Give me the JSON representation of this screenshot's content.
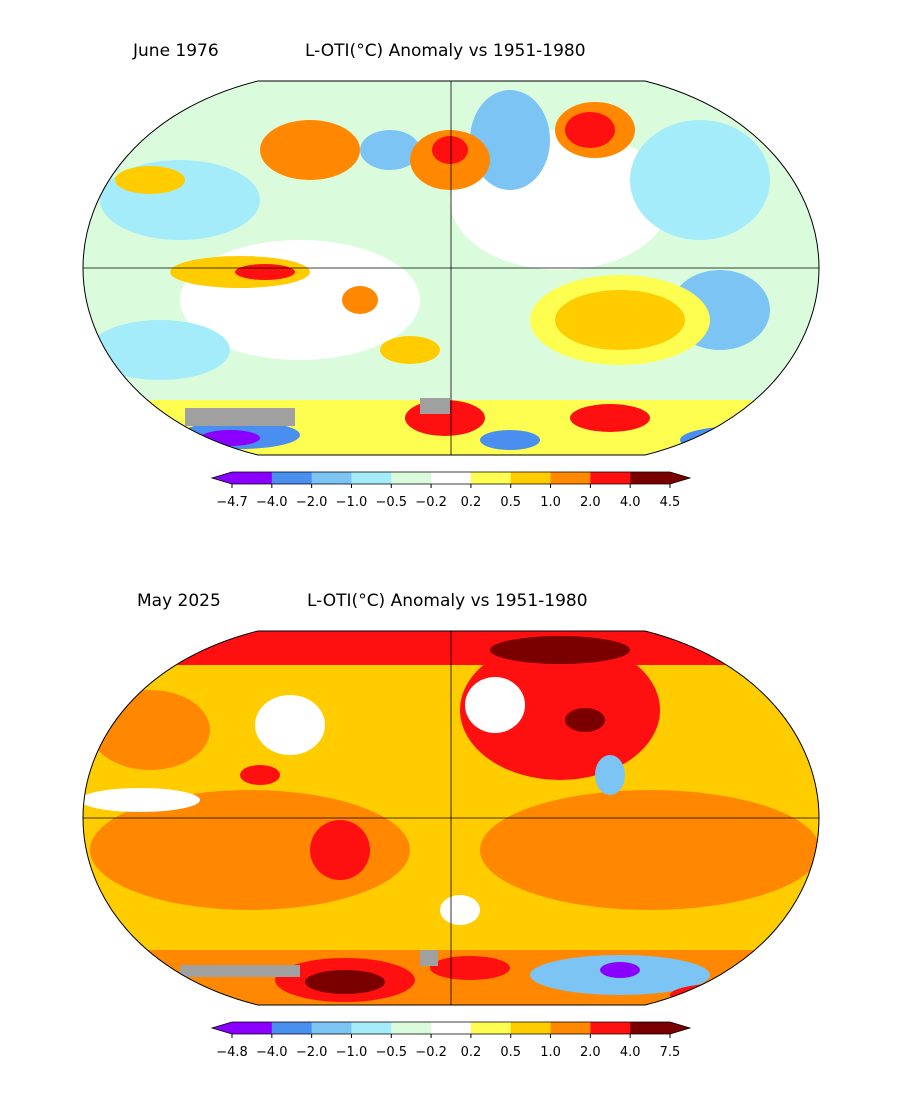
{
  "colorbar_colors": [
    "#8a00ff",
    "#4a8ff0",
    "#7cc4f4",
    "#a4ecfa",
    "#dafcdc",
    "#ffffff",
    "#fefe50",
    "#ffcc00",
    "#ff8800",
    "#ff1010",
    "#7a0000"
  ],
  "maps": [
    {
      "date": "June 1976",
      "title": "L-OTI(°C) Anomaly vs 1951-1980",
      "ticks": [
        "−4.7",
        "−4.0",
        "−2.0",
        "−1.0",
        "−0.5",
        "−0.2",
        "0.2",
        "0.5",
        "1.0",
        "2.0",
        "4.0",
        "4.5"
      ]
    },
    {
      "date": "May 2025",
      "title": "L-OTI(°C) Anomaly vs 1951-1980",
      "ticks": [
        "−4.8",
        "−4.0",
        "−2.0",
        "−1.0",
        "−0.5",
        "−0.2",
        "0.2",
        "0.5",
        "1.0",
        "2.0",
        "4.0",
        "7.5"
      ]
    }
  ]
}
